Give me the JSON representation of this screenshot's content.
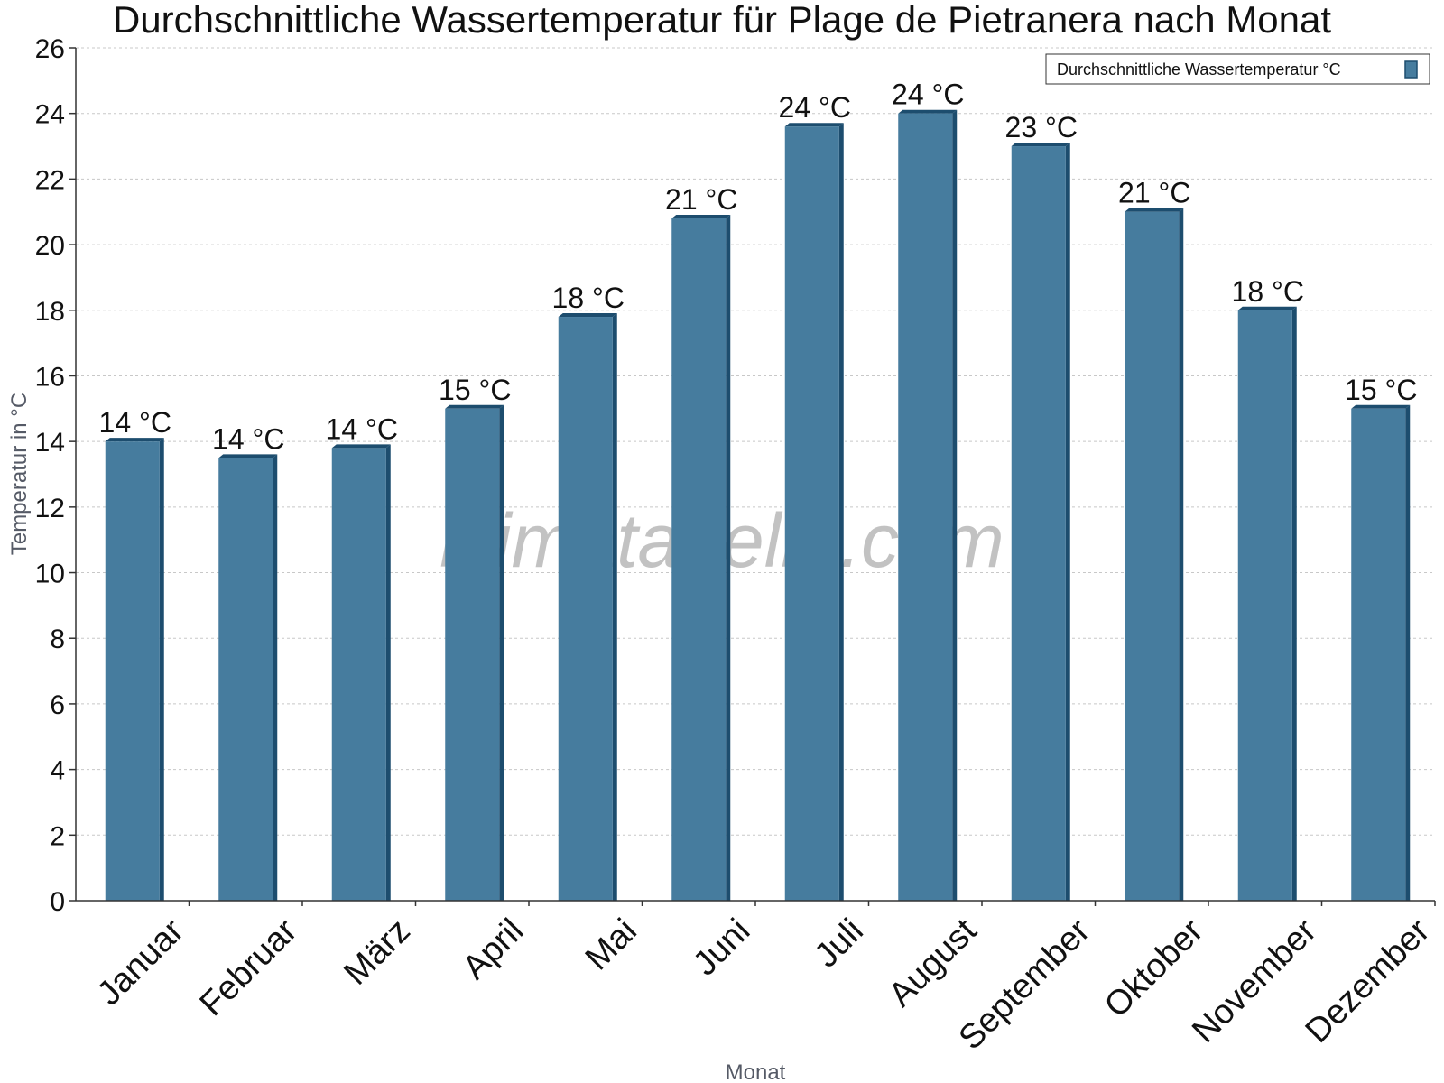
{
  "chart_data": {
    "type": "bar",
    "title": "Durchschnittliche Wassertemperatur für Plage de Pietranera nach Monat",
    "xlabel": "Monat",
    "ylabel": "Temperatur in °C",
    "ylim": [
      0,
      26
    ],
    "yticks": [
      0,
      2,
      4,
      6,
      8,
      10,
      12,
      14,
      16,
      18,
      20,
      22,
      24,
      26
    ],
    "grid": true,
    "legend_position": "top-right",
    "categories": [
      "Januar",
      "Februar",
      "März",
      "April",
      "Mai",
      "Juni",
      "Juli",
      "August",
      "September",
      "Oktober",
      "November",
      "Dezember"
    ],
    "series": [
      {
        "name": "Durchschnittliche Wassertemperatur °C",
        "values": [
          14.0,
          13.5,
          13.8,
          15.0,
          17.8,
          20.8,
          23.6,
          24.0,
          23.0,
          21.0,
          18.0,
          15.0
        ],
        "labels": [
          "14 °C",
          "14 °C",
          "14 °C",
          "15 °C",
          "18 °C",
          "21 °C",
          "24 °C",
          "24 °C",
          "23 °C",
          "21 °C",
          "18 °C",
          "15 °C"
        ],
        "color": "#467c9e",
        "edge_color": "#1d4d6e"
      }
    ],
    "watermark": "klimatabelle.com"
  }
}
